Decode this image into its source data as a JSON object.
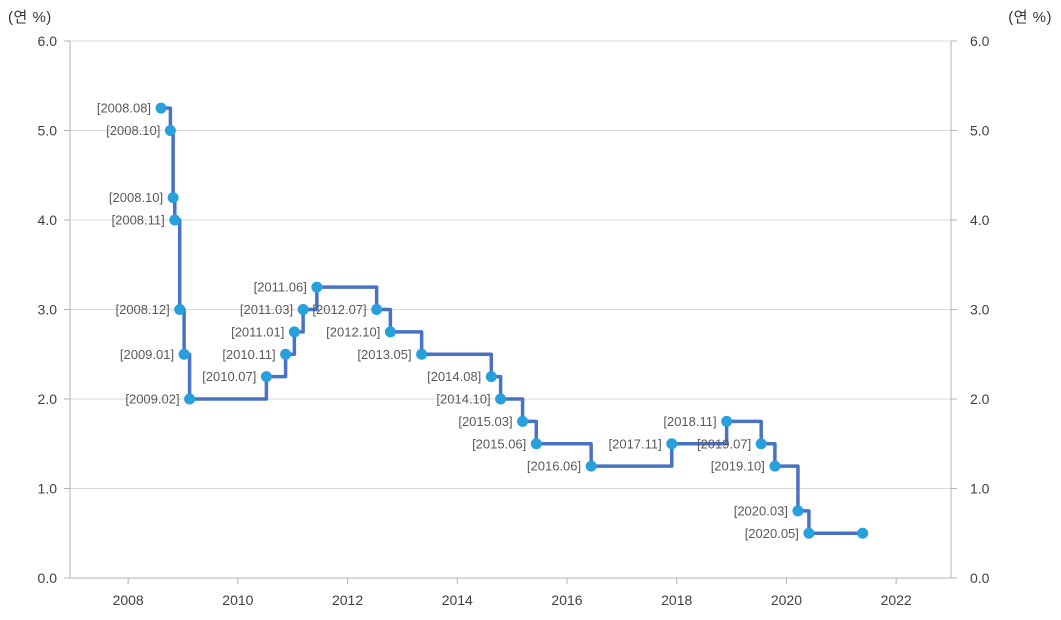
{
  "chart_data": {
    "type": "line",
    "subtype": "step-after",
    "unit_label_left": "(연 %)",
    "unit_label_right": "(연 %)",
    "xlim": [
      2006.94,
      2023.0
    ],
    "ylim": [
      0,
      6
    ],
    "grid": "horizontal",
    "legend": "none",
    "x_ticks": [
      {
        "label": "2008",
        "value": 2008
      },
      {
        "label": "2010",
        "value": 2010
      },
      {
        "label": "2012",
        "value": 2012
      },
      {
        "label": "2014",
        "value": 2014
      },
      {
        "label": "2016",
        "value": 2016
      },
      {
        "label": "2018",
        "value": 2018
      },
      {
        "label": "2020",
        "value": 2020
      },
      {
        "label": "2022",
        "value": 2022
      }
    ],
    "y_ticks": [
      {
        "label": "0.0",
        "value": 0
      },
      {
        "label": "1.0",
        "value": 1
      },
      {
        "label": "2.0",
        "value": 2
      },
      {
        "label": "3.0",
        "value": 3
      },
      {
        "label": "4.0",
        "value": 4
      },
      {
        "label": "5.0",
        "value": 5
      },
      {
        "label": "6.0",
        "value": 6
      }
    ],
    "points": [
      {
        "label": "[2008.08]",
        "t": 2008.6,
        "value": 5.25
      },
      {
        "label": "[2008.10]",
        "t": 2008.77,
        "value": 5.0
      },
      {
        "label": "[2008.10]",
        "t": 2008.82,
        "value": 4.25
      },
      {
        "label": "[2008.11]",
        "t": 2008.85,
        "value": 4.0
      },
      {
        "label": "[2008.12]",
        "t": 2008.94,
        "value": 3.0
      },
      {
        "label": "[2009.01]",
        "t": 2009.02,
        "value": 2.5
      },
      {
        "label": "[2009.02]",
        "t": 2009.12,
        "value": 2.0
      },
      {
        "label": "[2010.07]",
        "t": 2010.52,
        "value": 2.25
      },
      {
        "label": "[2010.11]",
        "t": 2010.87,
        "value": 2.5
      },
      {
        "label": "[2011.01]",
        "t": 2011.03,
        "value": 2.75
      },
      {
        "label": "[2011.03]",
        "t": 2011.19,
        "value": 3.0
      },
      {
        "label": "[2011.06]",
        "t": 2011.44,
        "value": 3.25
      },
      {
        "label": "[2012.07]",
        "t": 2012.53,
        "value": 3.0
      },
      {
        "label": "[2012.10]",
        "t": 2012.78,
        "value": 2.75
      },
      {
        "label": "[2013.05]",
        "t": 2013.35,
        "value": 2.5
      },
      {
        "label": "[2014.08]",
        "t": 2014.62,
        "value": 2.25
      },
      {
        "label": "[2014.10]",
        "t": 2014.79,
        "value": 2.0
      },
      {
        "label": "[2015.03]",
        "t": 2015.19,
        "value": 1.75
      },
      {
        "label": "[2015.06]",
        "t": 2015.44,
        "value": 1.5
      },
      {
        "label": "[2016.06]",
        "t": 2016.44,
        "value": 1.25
      },
      {
        "label": "[2017.11]",
        "t": 2017.91,
        "value": 1.5
      },
      {
        "label": "[2018.11]",
        "t": 2018.91,
        "value": 1.75
      },
      {
        "label": "[2019.07]",
        "t": 2019.54,
        "value": 1.5
      },
      {
        "label": "[2019.10]",
        "t": 2019.79,
        "value": 1.25
      },
      {
        "label": "[2020.03]",
        "t": 2020.21,
        "value": 0.75
      },
      {
        "label": "[2020.05]",
        "t": 2020.41,
        "value": 0.5
      },
      {
        "label": null,
        "t": 2021.39,
        "value": 0.5
      }
    ],
    "colors": {
      "line": "#4a72c2",
      "marker": "#27a0dd",
      "grid": "#d9d9d9",
      "axis": "#b3b3b3",
      "tick_label": "#404040",
      "point_label": "#595959"
    }
  }
}
